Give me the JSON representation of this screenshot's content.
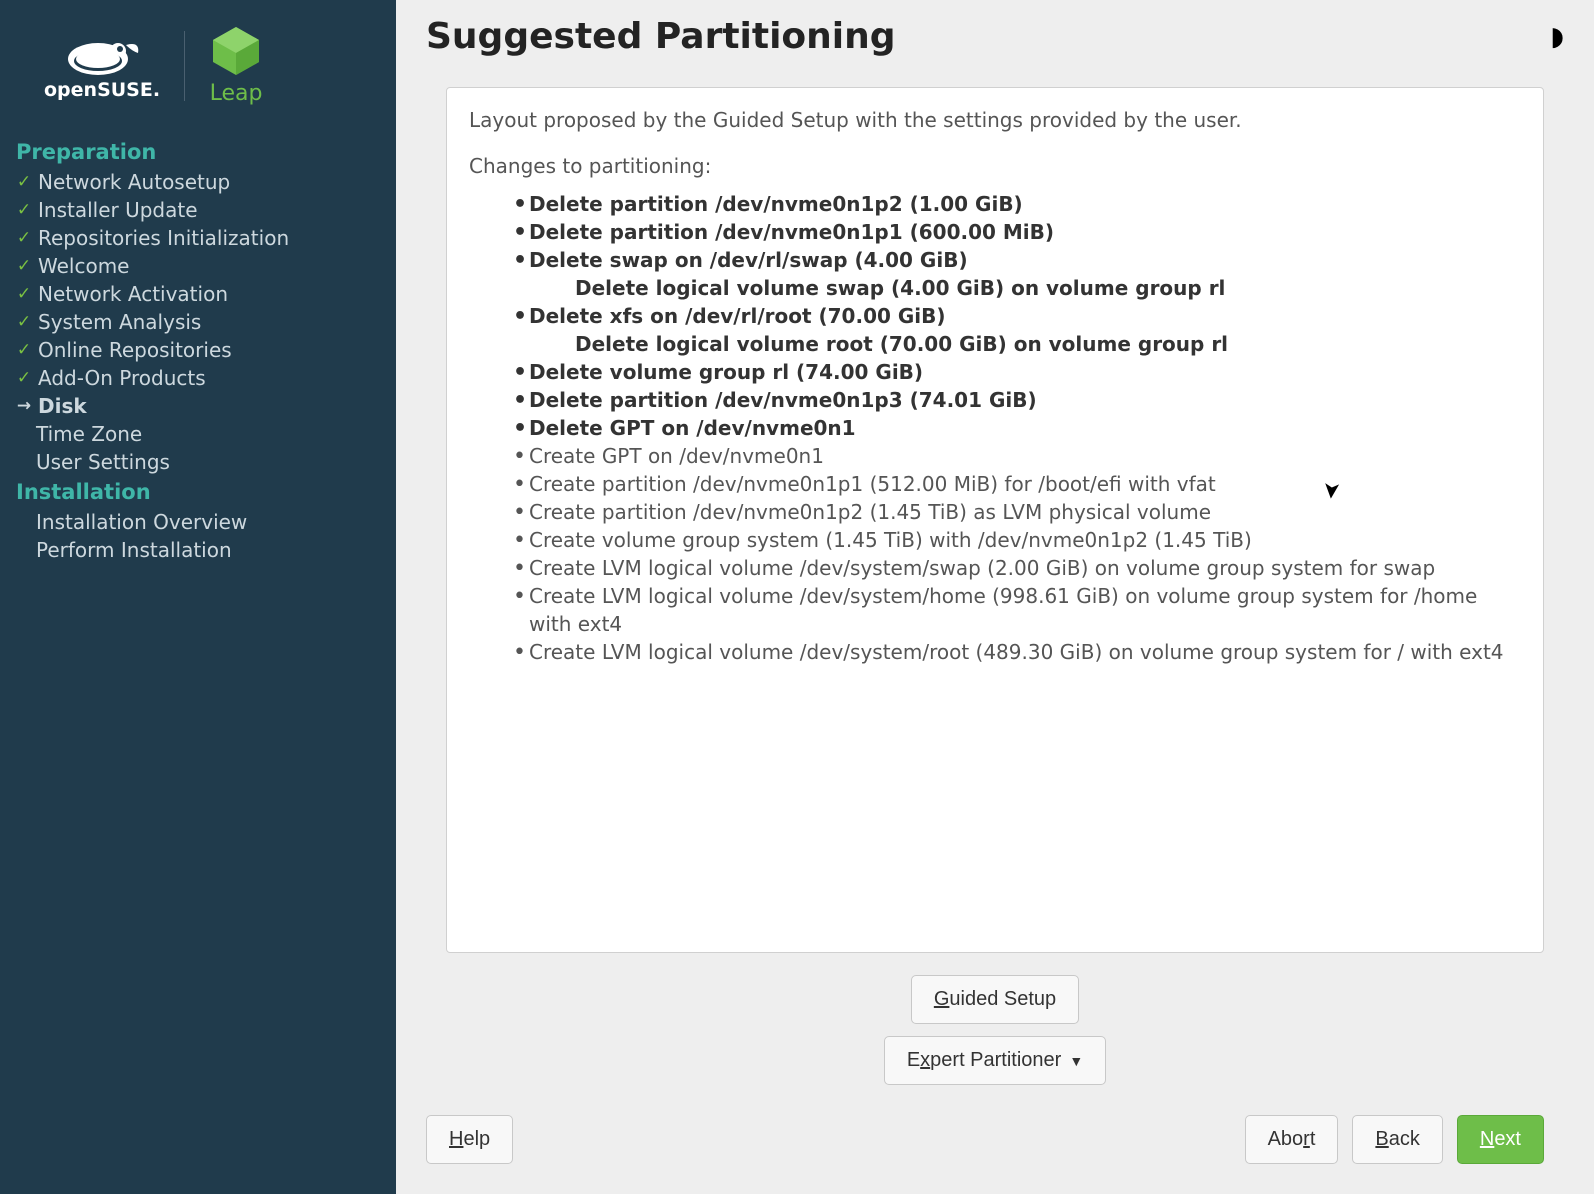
{
  "colors": {
    "sidebar_bg": "#203b4c",
    "accent_teal": "#3fb6a8",
    "check_green": "#7ac142",
    "btn_primary": "#6ebe49",
    "panel_bg": "#ffffff",
    "main_bg": "#eeeeee",
    "text_dark": "#232323",
    "text_body": "#555555"
  },
  "logos": {
    "suse_label": "openSUSE.",
    "leap_label": "Leap"
  },
  "sidebar": {
    "sections": [
      {
        "title": "Preparation",
        "items": [
          {
            "label": "Network Autosetup",
            "state": "done"
          },
          {
            "label": "Installer Update",
            "state": "done"
          },
          {
            "label": "Repositories Initialization",
            "state": "done"
          },
          {
            "label": "Welcome",
            "state": "done"
          },
          {
            "label": "Network Activation",
            "state": "done"
          },
          {
            "label": "System Analysis",
            "state": "done"
          },
          {
            "label": "Online Repositories",
            "state": "done"
          },
          {
            "label": "Add-On Products",
            "state": "done"
          },
          {
            "label": "Disk",
            "state": "current"
          },
          {
            "label": "Time Zone",
            "state": "pending"
          },
          {
            "label": "User Settings",
            "state": "pending"
          }
        ]
      },
      {
        "title": "Installation",
        "items": [
          {
            "label": "Installation Overview",
            "state": "pending"
          },
          {
            "label": "Perform Installation",
            "state": "pending"
          }
        ]
      }
    ]
  },
  "header": {
    "title": "Suggested Partitioning",
    "theme_icon": "◗"
  },
  "content": {
    "intro": "Layout proposed by the Guided Setup with the settings provided by the user.",
    "changes_label": "Changes to partitioning:",
    "changes": [
      {
        "text": "Delete partition /dev/nvme0n1p2 (1.00 GiB)",
        "bold": true
      },
      {
        "text": "Delete partition /dev/nvme0n1p1 (600.00 MiB)",
        "bold": true
      },
      {
        "text": "Delete swap on /dev/rl/swap (4.00 GiB)",
        "bold": true,
        "sub": "Delete logical volume swap (4.00 GiB) on volume group rl"
      },
      {
        "text": "Delete xfs on /dev/rl/root (70.00 GiB)",
        "bold": true,
        "sub": "Delete logical volume root (70.00 GiB) on volume group rl"
      },
      {
        "text": "Delete volume group rl (74.00 GiB)",
        "bold": true
      },
      {
        "text": "Delete partition /dev/nvme0n1p3 (74.01 GiB)",
        "bold": true
      },
      {
        "text": "Delete GPT on /dev/nvme0n1",
        "bold": true
      },
      {
        "text": "Create GPT on /dev/nvme0n1",
        "bold": false
      },
      {
        "text": "Create partition /dev/nvme0n1p1 (512.00 MiB) for /boot/efi with vfat",
        "bold": false
      },
      {
        "text": "Create partition /dev/nvme0n1p2 (1.45 TiB) as LVM physical volume",
        "bold": false
      },
      {
        "text": "Create volume group system (1.45 TiB) with /dev/nvme0n1p2 (1.45 TiB)",
        "bold": false
      },
      {
        "text": "Create LVM logical volume /dev/system/swap (2.00 GiB) on volume group system for swap",
        "bold": false
      },
      {
        "text": "Create LVM logical volume /dev/system/home (998.61 GiB) on volume group system for /home with ext4",
        "bold": false
      },
      {
        "text": "Create LVM logical volume /dev/system/root (489.30 GiB) on volume group system for / with ext4",
        "bold": false
      }
    ]
  },
  "buttons": {
    "guided_setup": "Guided Setup",
    "guided_setup_ul": "G",
    "expert_partitioner": "Expert Partitioner",
    "expert_partitioner_ul": "x",
    "help": "Help",
    "help_ul": "H",
    "abort": "Abort",
    "abort_ul": "r",
    "back": "Back",
    "back_ul": "B",
    "next": "Next",
    "next_ul": "N"
  }
}
